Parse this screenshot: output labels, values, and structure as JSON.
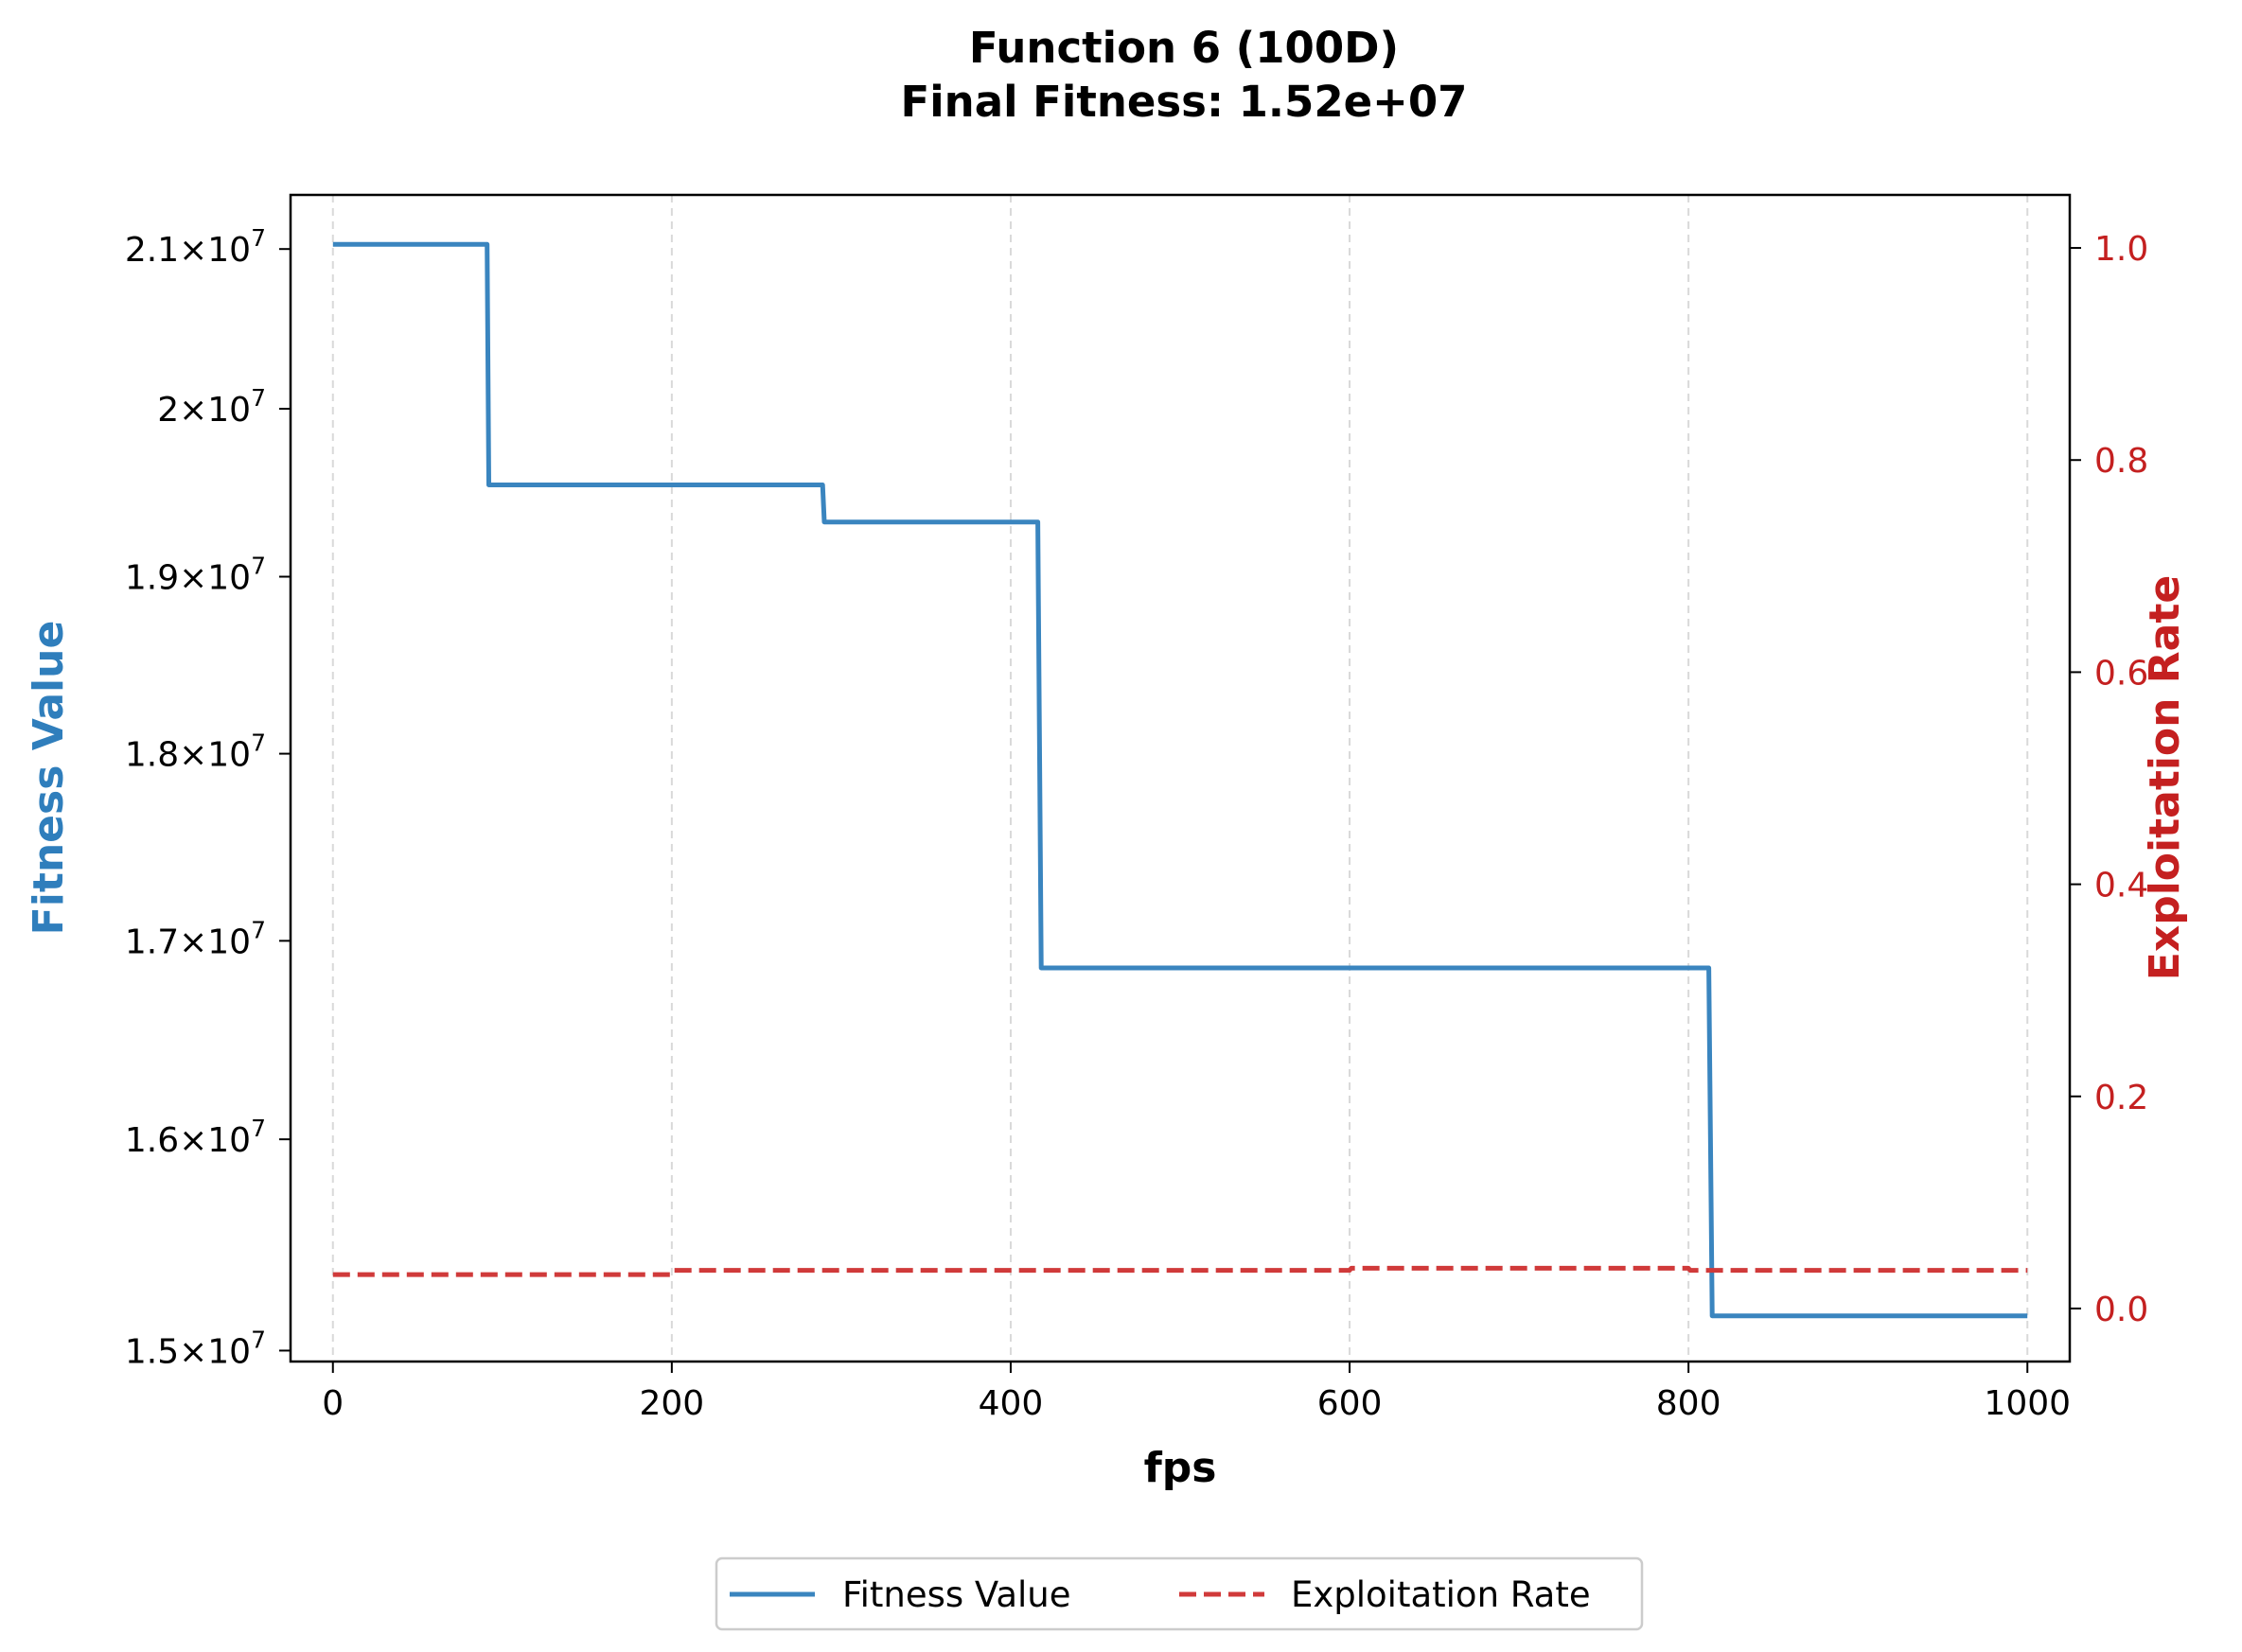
{
  "chart_data": {
    "type": "line",
    "title": "Function 6 (100D)",
    "subtitle": "Final Fitness: 1.52e+07",
    "xlabel": "fps",
    "ylabel": "Fitness Value",
    "y2label": "Exploitation Rate",
    "xlim": [
      -25,
      1025
    ],
    "ylim": [
      14950000,
      21350000
    ],
    "y2lim": [
      -0.05,
      1.05
    ],
    "yscale": "log",
    "grid": "x-dashed",
    "legend_position": "bottom-center",
    "x_ticks": [
      0,
      200,
      400,
      600,
      800,
      1000
    ],
    "x_tick_labels": [
      "0",
      "200",
      "400",
      "600",
      "800",
      "1000"
    ],
    "y_ticks": [
      {
        "value": 21000000,
        "mantissa": "2.1"
      },
      {
        "value": 20000000,
        "mantissa": "2"
      },
      {
        "value": 19000000,
        "mantissa": "1.9"
      },
      {
        "value": 18000000,
        "mantissa": "1.8"
      },
      {
        "value": 17000000,
        "mantissa": "1.7"
      },
      {
        "value": 16000000,
        "mantissa": "1.6"
      },
      {
        "value": 15000000,
        "mantissa": "1.5"
      }
    ],
    "y_tick_times": "×",
    "y_tick_base": "10",
    "y_tick_exponent": "7",
    "y2_ticks": [
      0.0,
      0.2,
      0.4,
      0.6,
      0.8,
      1.0
    ],
    "y2_tick_labels": [
      "0.0",
      "0.2",
      "0.4",
      "0.6",
      "0.8",
      "1.0"
    ],
    "series": [
      {
        "name": "Fitness Value",
        "axis": "left",
        "color": "#3a85bf",
        "style": "solid",
        "x": [
          0,
          91,
          92,
          289,
          290,
          416,
          418,
          812,
          814,
          1000
        ],
        "y": [
          21030000,
          21030000,
          19540000,
          19540000,
          19320000,
          19320000,
          16860000,
          16860000,
          15160000,
          15160000
        ]
      },
      {
        "name": "Exploitation Rate",
        "axis": "right",
        "color": "#d03a3a",
        "style": "dashed",
        "x": [
          0,
          200,
          201,
          600,
          601,
          800,
          801,
          1000
        ],
        "y": [
          0.032,
          0.032,
          0.036,
          0.036,
          0.038,
          0.038,
          0.036,
          0.036
        ]
      }
    ]
  }
}
